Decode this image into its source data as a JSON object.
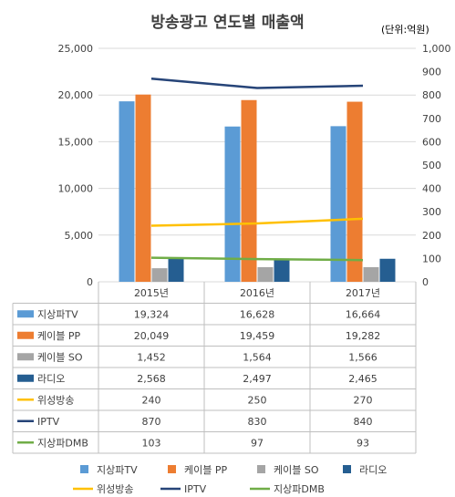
{
  "chart_data": {
    "type": "bar",
    "title": "방송광고 연도별 매출액",
    "unit": "(단위:억원)",
    "categories": [
      "2015년",
      "2016년",
      "2017년"
    ],
    "series": [
      {
        "name": "지상파TV",
        "kind": "bar",
        "axis": "left",
        "color": "#5B9BD5",
        "values": [
          19324,
          16628,
          16664
        ],
        "labels": [
          "19,324",
          "16,628",
          "16,664"
        ]
      },
      {
        "name": "케이블 PP",
        "kind": "bar",
        "axis": "left",
        "color": "#ED7D31",
        "values": [
          20049,
          19459,
          19282
        ],
        "labels": [
          "20,049",
          "19,459",
          "19,282"
        ]
      },
      {
        "name": "케이블 SO",
        "kind": "bar",
        "axis": "left",
        "color": "#A5A5A5",
        "values": [
          1452,
          1564,
          1566
        ],
        "labels": [
          "1,452",
          "1,564",
          "1,566"
        ]
      },
      {
        "name": "라디오",
        "kind": "bar",
        "axis": "left",
        "color": "#255E91",
        "values": [
          2568,
          2497,
          2465
        ],
        "labels": [
          "2,568",
          "2,497",
          "2,465"
        ]
      },
      {
        "name": "위성방송",
        "kind": "line",
        "axis": "right",
        "color": "#FFC000",
        "values": [
          240,
          250,
          270
        ],
        "labels": [
          "240",
          "250",
          "270"
        ]
      },
      {
        "name": "IPTV",
        "kind": "line",
        "axis": "right",
        "color": "#264478",
        "values": [
          870,
          830,
          840
        ],
        "labels": [
          "870",
          "830",
          "840"
        ]
      },
      {
        "name": "지상파DMB",
        "kind": "line",
        "axis": "right",
        "color": "#70AD47",
        "values": [
          103,
          97,
          93
        ],
        "labels": [
          "103",
          "97",
          "93"
        ]
      }
    ],
    "y_left": {
      "min": 0,
      "max": 25000,
      "ticks": [
        "0",
        "5,000",
        "10,000",
        "15,000",
        "20,000",
        "25,000"
      ]
    },
    "y_right": {
      "min": 0,
      "max": 1000,
      "ticks": [
        "0",
        "100",
        "200",
        "300",
        "400",
        "500",
        "600",
        "700",
        "800",
        "900",
        "1,000"
      ]
    },
    "grid": true,
    "data_table": true,
    "legend_position": "bottom"
  }
}
